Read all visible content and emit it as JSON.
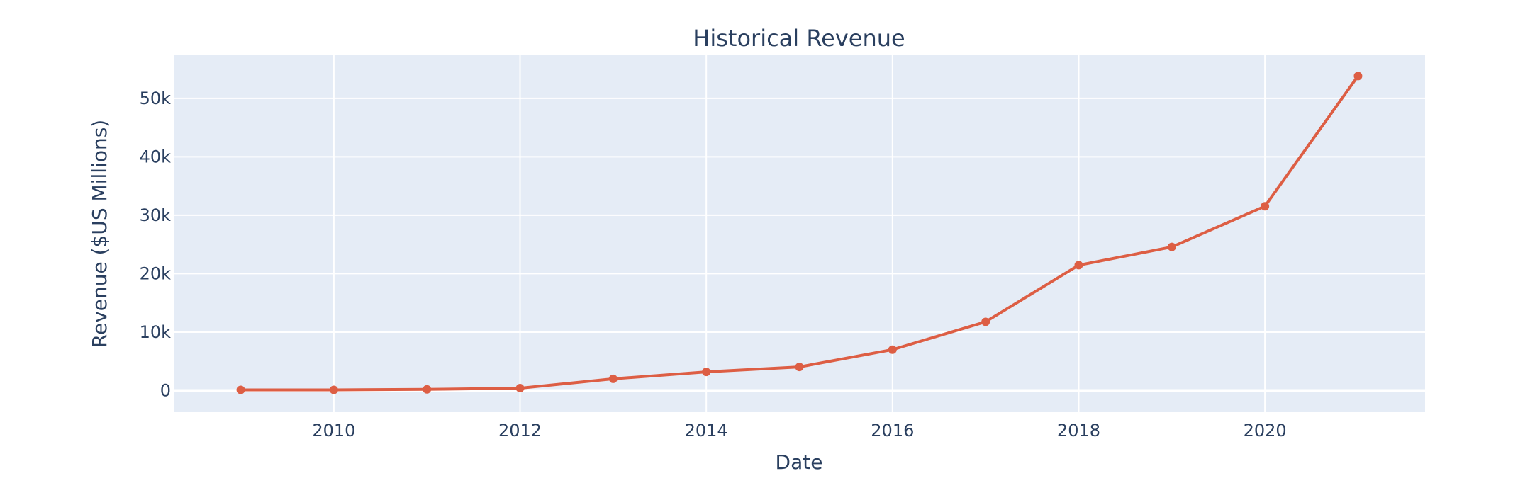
{
  "chart_data": {
    "type": "line",
    "title": "Historical Revenue",
    "xlabel": "Date",
    "ylabel": "Revenue ($US Millions)",
    "x": [
      2009,
      2010,
      2011,
      2012,
      2013,
      2014,
      2015,
      2016,
      2017,
      2018,
      2019,
      2020,
      2021
    ],
    "series": [
      {
        "values": [
          112,
          117,
          204,
          413,
          2013,
          3198,
          4046,
          7000,
          11759,
          21461,
          24578,
          31536,
          53823
        ],
        "color": "#dd5e44"
      }
    ],
    "xlim": [
      2008.28,
      2021.72
    ],
    "ylim": [
      -3700,
      57500
    ],
    "x_ticks": [
      2010,
      2012,
      2014,
      2016,
      2018,
      2020
    ],
    "x_tick_labels": [
      "2010",
      "2012",
      "2014",
      "2016",
      "2018",
      "2020"
    ],
    "y_ticks": [
      0,
      10000,
      20000,
      30000,
      40000,
      50000
    ],
    "y_tick_labels": [
      "0",
      "10k",
      "20k",
      "30k",
      "40k",
      "50k"
    ],
    "grid": true,
    "plot_background": "#e5ecf6"
  }
}
